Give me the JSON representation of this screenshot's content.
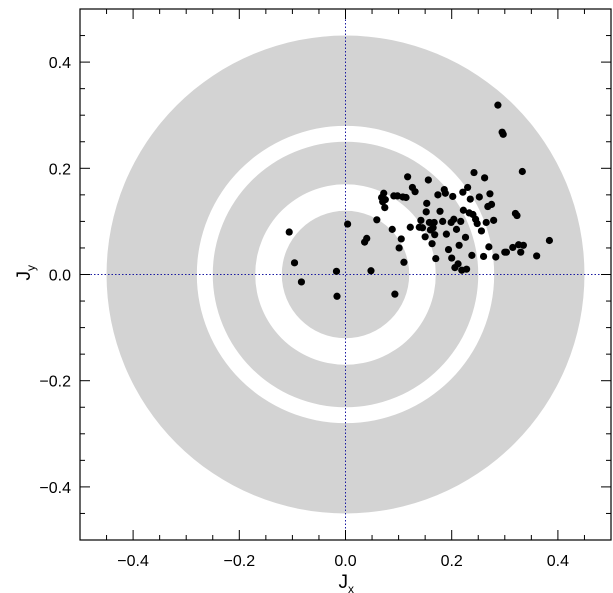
{
  "chart_data": {
    "type": "scatter",
    "title": "",
    "xlabel": "J",
    "xlabel_subscript": "x",
    "ylabel": "J",
    "ylabel_subscript": "y",
    "xlim": [
      -0.5,
      0.5
    ],
    "ylim": [
      -0.5,
      0.5
    ],
    "xticks": [
      -0.4,
      -0.2,
      0.0,
      0.2,
      0.4
    ],
    "yticks": [
      -0.4,
      -0.2,
      0.0,
      0.2,
      0.4
    ],
    "xtick_labels": [
      "−0.4",
      "−0.2",
      "0.0",
      "0.2",
      "0.4"
    ],
    "ytick_labels": [
      "−0.4",
      "−0.2",
      "0.0",
      "0.2",
      "0.4"
    ],
    "reference_lines": {
      "x": 0.0,
      "y": 0.0,
      "style": "dotted",
      "color": "#1a1aa0"
    },
    "shaded_rings": [
      {
        "inner_radius": 0.28,
        "outer_radius": 0.45
      },
      {
        "inner_radius": 0.17,
        "outer_radius": 0.25
      },
      {
        "inner_radius": 0.0,
        "outer_radius": 0.12
      }
    ],
    "ring_color": "#d3d3d3",
    "marker_color": "#000000",
    "grid": false,
    "legend": "none",
    "points": [
      [
        -0.106,
        0.08
      ],
      [
        -0.096,
        0.022
      ],
      [
        -0.083,
        -0.014
      ],
      [
        -0.017,
        0.006
      ],
      [
        -0.016,
        -0.041
      ],
      [
        0.004,
        0.095
      ],
      [
        0.036,
        0.061
      ],
      [
        0.04,
        0.068
      ],
      [
        0.048,
        0.007
      ],
      [
        0.059,
        0.103
      ],
      [
        0.068,
        0.145
      ],
      [
        0.07,
        0.137
      ],
      [
        0.072,
        0.153
      ],
      [
        0.074,
        0.126
      ],
      [
        0.075,
        0.141
      ],
      [
        0.088,
        0.085
      ],
      [
        0.091,
        0.148
      ],
      [
        0.093,
        -0.037
      ],
      [
        0.098,
        0.148
      ],
      [
        0.101,
        0.05
      ],
      [
        0.105,
        0.067
      ],
      [
        0.108,
        0.146
      ],
      [
        0.11,
        0.023
      ],
      [
        0.114,
        0.145
      ],
      [
        0.117,
        0.184
      ],
      [
        0.122,
        0.089
      ],
      [
        0.126,
        0.164
      ],
      [
        0.131,
        0.156
      ],
      [
        0.139,
        0.089
      ],
      [
        0.142,
        0.102
      ],
      [
        0.145,
        0.088
      ],
      [
        0.15,
        0.071
      ],
      [
        0.152,
        0.118
      ],
      [
        0.153,
        0.134
      ],
      [
        0.156,
        0.178
      ],
      [
        0.158,
        0.098
      ],
      [
        0.16,
        0.084
      ],
      [
        0.163,
        0.058
      ],
      [
        0.165,
        0.088
      ],
      [
        0.167,
        0.098
      ],
      [
        0.168,
        0.075
      ],
      [
        0.17,
        0.03
      ],
      [
        0.174,
        0.15
      ],
      [
        0.178,
        0.119
      ],
      [
        0.183,
        0.1
      ],
      [
        0.186,
        0.16
      ],
      [
        0.188,
        0.153
      ],
      [
        0.19,
        0.076
      ],
      [
        0.194,
        0.047
      ],
      [
        0.199,
        0.098
      ],
      [
        0.2,
        0.031
      ],
      [
        0.202,
        0.147
      ],
      [
        0.204,
        0.104
      ],
      [
        0.206,
        0.013
      ],
      [
        0.209,
        0.085
      ],
      [
        0.212,
        0.02
      ],
      [
        0.214,
        0.055
      ],
      [
        0.217,
        0.1
      ],
      [
        0.219,
        0.008
      ],
      [
        0.221,
        0.155
      ],
      [
        0.222,
        0.121
      ],
      [
        0.226,
        0.07
      ],
      [
        0.228,
        0.01
      ],
      [
        0.23,
        0.164
      ],
      [
        0.233,
        0.116
      ],
      [
        0.235,
        0.142
      ],
      [
        0.238,
        0.036
      ],
      [
        0.24,
        0.113
      ],
      [
        0.242,
        0.192
      ],
      [
        0.245,
        0.104
      ],
      [
        0.248,
        0.096
      ],
      [
        0.252,
        0.146
      ],
      [
        0.256,
        0.082
      ],
      [
        0.26,
        0.034
      ],
      [
        0.262,
        0.182
      ],
      [
        0.265,
        0.098
      ],
      [
        0.268,
        0.128
      ],
      [
        0.27,
        0.052
      ],
      [
        0.272,
        0.152
      ],
      [
        0.275,
        0.132
      ],
      [
        0.279,
        0.102
      ],
      [
        0.283,
        0.033
      ],
      [
        0.287,
        0.319
      ],
      [
        0.295,
        0.268
      ],
      [
        0.297,
        0.264
      ],
      [
        0.3,
        0.042
      ],
      [
        0.303,
        0.042
      ],
      [
        0.315,
        0.051
      ],
      [
        0.32,
        0.115
      ],
      [
        0.323,
        0.111
      ],
      [
        0.326,
        0.056
      ],
      [
        0.33,
        0.042
      ],
      [
        0.333,
        0.194
      ],
      [
        0.335,
        0.055
      ],
      [
        0.36,
        0.035
      ],
      [
        0.384,
        0.064
      ]
    ]
  }
}
